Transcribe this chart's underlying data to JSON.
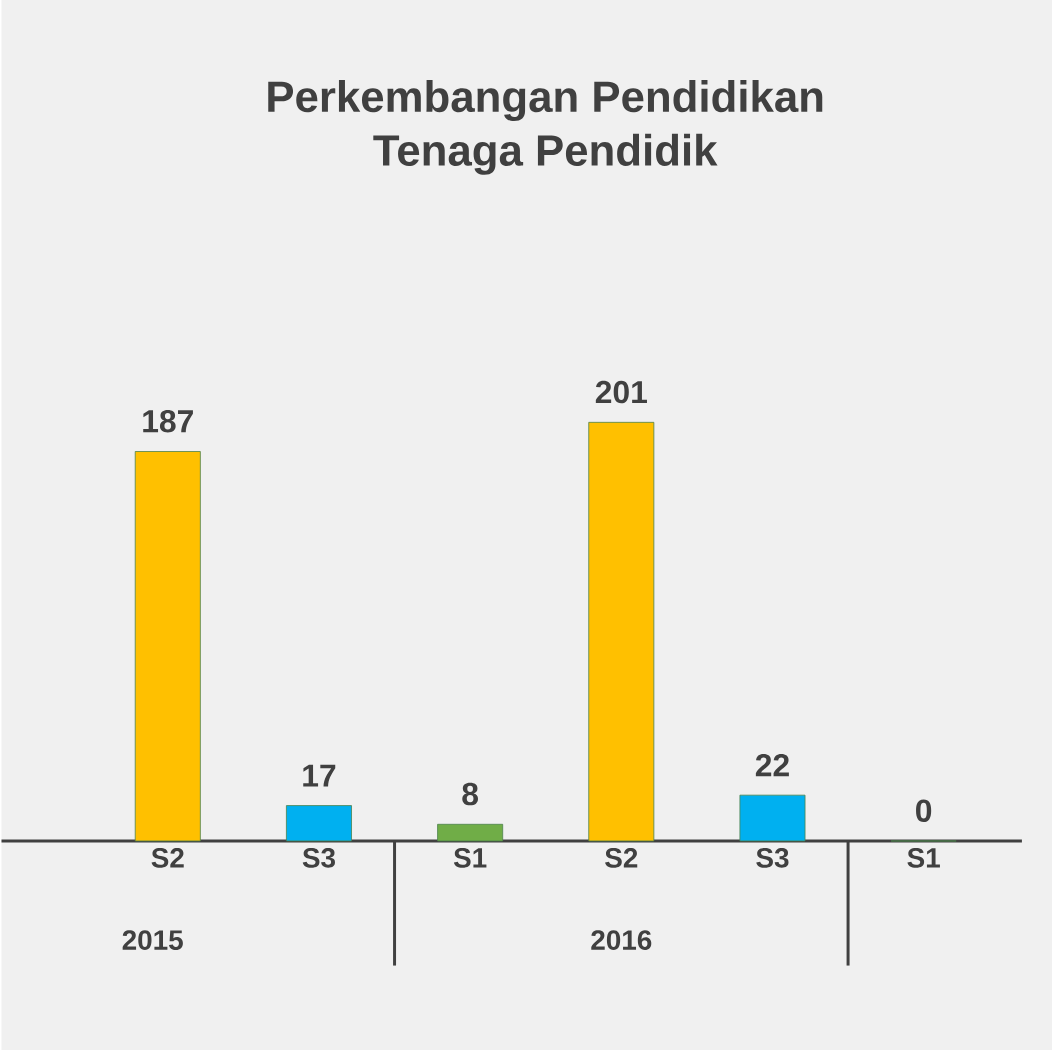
{
  "chart_data": {
    "type": "bar",
    "title": "Perkembangan Pendidikan\nTenaga Pendidik",
    "categories": [
      "S2",
      "S3",
      "S1",
      "S2",
      "S3",
      "S1"
    ],
    "values": [
      187,
      17,
      8,
      201,
      22,
      0
    ],
    "colors": [
      "#ffc000",
      "#00b0f0",
      "#70ad47",
      "#ffc000",
      "#00b0f0",
      "#70ad47"
    ],
    "tick_labels": "x",
    "data_labels": true,
    "annotations": [
      "2015",
      "2016"
    ]
  }
}
